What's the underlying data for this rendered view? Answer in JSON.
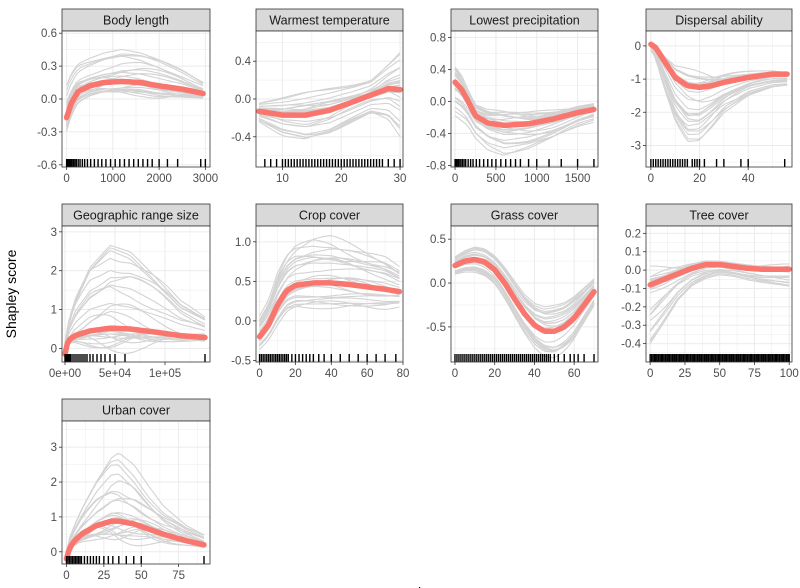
{
  "figure": {
    "ylabel": "Shapley score",
    "xlabel": "value",
    "colors": {
      "mean": "#F8766D",
      "bootstrap": "#D3D3D3",
      "strip": "#D9D9D9",
      "grid": "#EBEBEB",
      "rug": "#000000"
    }
  },
  "chart_data": [
    {
      "type": "line",
      "title": "Body length",
      "xlim": [
        -100,
        3100
      ],
      "ylim": [
        -0.62,
        0.62
      ],
      "xticks": [
        0,
        1000,
        2000,
        3000
      ],
      "xtick_labels": [
        "0",
        "1000",
        "2000",
        "3000"
      ],
      "yticks": [
        -0.6,
        -0.3,
        0.0,
        0.3,
        0.6
      ],
      "ytick_labels": [
        "-0.6",
        "-0.3",
        "0.0",
        "0.3",
        "0.6"
      ],
      "mean": {
        "x": [
          0,
          100,
          250,
          500,
          800,
          1200,
          1600,
          2000,
          2500,
          2950
        ],
        "y": [
          -0.17,
          -0.04,
          0.07,
          0.12,
          0.15,
          0.16,
          0.15,
          0.12,
          0.09,
          0.05
        ]
      },
      "band_amp": [
        0.35,
        0.32,
        0.3,
        0.3,
        0.32,
        0.35,
        0.32,
        0.28,
        0.2,
        0.12
      ],
      "band_skew": 0.5,
      "band_count": 24,
      "rug": [
        0,
        10,
        20,
        30,
        45,
        60,
        80,
        100,
        120,
        150,
        180,
        210,
        250,
        290,
        340,
        390,
        450,
        520,
        600,
        680,
        760,
        850,
        950,
        1050,
        1150,
        1250,
        1350,
        1450,
        1550,
        1650,
        1750,
        1850,
        2000,
        2180,
        2400,
        2900,
        3000
      ]
    },
    {
      "type": "line",
      "title": "Warmest temperature",
      "xlim": [
        5.5,
        30.5
      ],
      "ylim": [
        -0.72,
        0.72
      ],
      "xticks": [
        10,
        20,
        30
      ],
      "xtick_labels": [
        "10",
        "20",
        "30"
      ],
      "yticks": [
        -0.4,
        0.0,
        0.4
      ],
      "ytick_labels": [
        "-0.4",
        "0.0",
        "0.4"
      ],
      "mean": {
        "x": [
          6,
          10,
          14,
          18,
          22,
          25,
          28,
          30
        ],
        "y": [
          -0.13,
          -0.17,
          -0.17,
          -0.12,
          -0.03,
          0.04,
          0.11,
          0.1
        ]
      },
      "band_amp": [
        0.1,
        0.2,
        0.26,
        0.25,
        0.2,
        0.18,
        0.3,
        0.45
      ],
      "band_skew": 0.0,
      "band_count": 24,
      "rug": [
        7,
        8,
        9,
        10,
        10.5,
        11,
        11.5,
        12,
        12.5,
        13,
        13.5,
        14,
        14.5,
        15,
        15.5,
        16,
        16.5,
        17,
        17.5,
        18,
        18.5,
        19,
        19.5,
        20,
        20.5,
        21,
        21.5,
        22,
        22.5,
        23,
        23.5,
        24,
        24.5,
        25,
        25.5,
        26,
        26.5,
        27,
        28,
        29,
        30
      ]
    },
    {
      "type": "line",
      "title": "Lowest precipitation",
      "xlim": [
        -50,
        1750
      ],
      "ylim": [
        -0.82,
        0.88
      ],
      "xticks": [
        0,
        500,
        1000,
        1500
      ],
      "xtick_labels": [
        "0",
        "500",
        "1000",
        "1500"
      ],
      "yticks": [
        -0.8,
        -0.4,
        0.0,
        0.4,
        0.8
      ],
      "ytick_labels": [
        "-0.8",
        "-0.4",
        "0.0",
        "0.4",
        "0.8"
      ],
      "mean": {
        "x": [
          0,
          80,
          150,
          250,
          400,
          600,
          900,
          1200,
          1500,
          1700
        ],
        "y": [
          0.24,
          0.15,
          0.02,
          -0.18,
          -0.27,
          -0.3,
          -0.28,
          -0.22,
          -0.14,
          -0.1
        ]
      },
      "band_amp": [
        0.5,
        0.45,
        0.35,
        0.3,
        0.35,
        0.4,
        0.35,
        0.3,
        0.22,
        0.18
      ],
      "band_skew": -0.5,
      "band_count": 24,
      "rug": [
        0,
        10,
        20,
        35,
        50,
        70,
        90,
        110,
        130,
        160,
        190,
        220,
        260,
        300,
        350,
        400,
        450,
        500,
        560,
        620,
        680,
        740,
        800,
        900,
        1000,
        1150,
        1300,
        1500,
        1700
      ]
    },
    {
      "type": "line",
      "title": "Dispersal ability",
      "xlim": [
        -2,
        58
      ],
      "ylim": [
        -3.65,
        0.45
      ],
      "xticks": [
        0,
        20,
        40
      ],
      "xtick_labels": [
        "0",
        "20",
        "40"
      ],
      "yticks": [
        -3,
        -2,
        -1,
        0
      ],
      "ytick_labels": [
        "-3",
        "-2",
        "-1",
        "0"
      ],
      "mean": {
        "x": [
          0,
          2,
          5,
          10,
          15,
          20,
          25,
          30,
          40,
          50,
          56
        ],
        "y": [
          0.05,
          -0.05,
          -0.4,
          -0.95,
          -1.2,
          -1.25,
          -1.2,
          -1.1,
          -0.95,
          -0.85,
          -0.85
        ]
      },
      "band_amp": [
        0.2,
        0.4,
        0.9,
        1.5,
        1.9,
        1.8,
        1.4,
        1.0,
        0.6,
        0.45,
        0.4
      ],
      "band_skew": -0.7,
      "band_count": 24,
      "rug": [
        0,
        1,
        2,
        3,
        4,
        5,
        6,
        7,
        8,
        9,
        10,
        11,
        12,
        13,
        14,
        15,
        17,
        18,
        19,
        20,
        22,
        27,
        30,
        37,
        40,
        55
      ]
    },
    {
      "type": "line",
      "title": "Geographic range size",
      "xlim": [
        -3000,
        145000
      ],
      "ylim": [
        -0.35,
        3.15
      ],
      "xticks": [
        0,
        50000,
        100000
      ],
      "xtick_labels": [
        "0e+00",
        "5e+04",
        "1e+05"
      ],
      "yticks": [
        0,
        1,
        2,
        3
      ],
      "ytick_labels": [
        "0",
        "1",
        "2",
        "3"
      ],
      "mean": {
        "x": [
          0,
          3000,
          10000,
          25000,
          45000,
          65000,
          90000,
          115000,
          140000
        ],
        "y": [
          -0.15,
          0.2,
          0.33,
          0.45,
          0.52,
          0.5,
          0.42,
          0.33,
          0.28
        ]
      },
      "band_amp": [
        0.3,
        0.4,
        0.9,
        1.7,
        2.2,
        2.0,
        1.4,
        0.8,
        0.5
      ],
      "band_skew": 0.75,
      "band_count": 24,
      "rug": [
        0,
        1000,
        2000,
        3000,
        4000,
        5000,
        6000,
        8000,
        10000,
        12000,
        14000,
        16000,
        18000,
        20000,
        22000,
        25000,
        28000,
        32000,
        36000,
        40000,
        45000,
        50000,
        60000,
        140000
      ]
    },
    {
      "type": "line",
      "title": "Crop cover",
      "xlim": [
        -2,
        80
      ],
      "ylim": [
        -0.52,
        1.2
      ],
      "xticks": [
        0,
        20,
        40,
        60,
        80
      ],
      "xtick_labels": [
        "0",
        "20",
        "40",
        "60",
        "80"
      ],
      "yticks": [
        -0.5,
        0.0,
        0.5,
        1.0
      ],
      "ytick_labels": [
        "-0.5",
        "0.0",
        "0.5",
        "1.0"
      ],
      "mean": {
        "x": [
          0,
          5,
          10,
          15,
          20,
          30,
          40,
          50,
          60,
          70,
          78
        ],
        "y": [
          -0.2,
          -0.05,
          0.2,
          0.38,
          0.45,
          0.48,
          0.48,
          0.46,
          0.43,
          0.4,
          0.37
        ]
      },
      "band_amp": [
        0.25,
        0.3,
        0.4,
        0.45,
        0.5,
        0.55,
        0.55,
        0.5,
        0.45,
        0.4,
        0.3
      ],
      "band_skew": 0.3,
      "band_count": 24,
      "rug": [
        0,
        1,
        2,
        3,
        4,
        5,
        6,
        7,
        8,
        9,
        10,
        11,
        12,
        13,
        14,
        15,
        16,
        18,
        20,
        22,
        24,
        26,
        28,
        30,
        33,
        36,
        40,
        45,
        50,
        55,
        60,
        65,
        70,
        76
      ]
    },
    {
      "type": "line",
      "title": "Grass cover",
      "xlim": [
        -2,
        72
      ],
      "ylim": [
        -0.9,
        0.65
      ],
      "xticks": [
        0,
        20,
        40,
        60
      ],
      "xtick_labels": [
        "0",
        "20",
        "40",
        "60"
      ],
      "yticks": [
        -0.5,
        0.0,
        0.5
      ],
      "ytick_labels": [
        "-0.5",
        "0.0",
        "0.5"
      ],
      "mean": {
        "x": [
          0,
          5,
          10,
          15,
          20,
          25,
          30,
          35,
          40,
          45,
          50,
          55,
          60,
          65,
          70
        ],
        "y": [
          0.2,
          0.25,
          0.27,
          0.24,
          0.15,
          0.0,
          -0.18,
          -0.35,
          -0.48,
          -0.55,
          -0.55,
          -0.5,
          -0.4,
          -0.25,
          -0.1
        ]
      },
      "band_amp": [
        0.1,
        0.12,
        0.14,
        0.15,
        0.16,
        0.18,
        0.2,
        0.22,
        0.25,
        0.28,
        0.3,
        0.28,
        0.25,
        0.2,
        0.15
      ],
      "band_skew": 0.0,
      "band_count": 24,
      "rug": [
        0,
        1,
        2,
        3,
        4,
        5,
        6,
        7,
        8,
        9,
        10,
        11,
        12,
        13,
        14,
        15,
        16,
        17,
        18,
        19,
        20,
        21,
        22,
        23,
        24,
        25,
        26,
        27,
        28,
        29,
        30,
        31,
        32,
        33,
        34,
        35,
        36,
        37,
        38,
        39,
        40,
        41,
        42,
        43,
        44,
        45,
        46,
        47,
        48,
        50,
        52,
        55,
        58,
        60,
        62,
        65,
        70
      ]
    },
    {
      "type": "line",
      "title": "Tree cover",
      "xlim": [
        -3,
        102
      ],
      "ylim": [
        -0.5,
        0.24
      ],
      "xticks": [
        0,
        25,
        50,
        75,
        100
      ],
      "xtick_labels": [
        "0",
        "25",
        "50",
        "75",
        "100"
      ],
      "yticks": [
        -0.4,
        -0.3,
        -0.2,
        -0.1,
        0.0,
        0.1,
        0.2
      ],
      "ytick_labels": [
        "-0.4",
        "-0.3",
        "-0.2",
        "-0.1",
        "0.0",
        "0.1",
        "0.2"
      ],
      "mean": {
        "x": [
          0,
          10,
          20,
          30,
          40,
          50,
          60,
          70,
          80,
          90,
          100
        ],
        "y": [
          -0.08,
          -0.05,
          -0.02,
          0.01,
          0.03,
          0.03,
          0.02,
          0.01,
          0.005,
          0.005,
          0.005
        ]
      },
      "band_amp": [
        0.35,
        0.25,
        0.15,
        0.1,
        0.08,
        0.06,
        0.06,
        0.07,
        0.08,
        0.09,
        0.1
      ],
      "band_skew": -0.6,
      "band_count": 24,
      "rug": [
        0,
        1,
        2,
        3,
        4,
        5,
        6,
        7,
        8,
        9,
        10,
        11,
        12,
        13,
        14,
        15,
        16,
        17,
        18,
        19,
        20,
        21,
        22,
        23,
        24,
        25,
        26,
        27,
        28,
        29,
        30,
        31,
        32,
        33,
        34,
        35,
        36,
        37,
        38,
        39,
        40,
        41,
        42,
        43,
        44,
        45,
        46,
        47,
        48,
        49,
        50,
        51,
        52,
        53,
        54,
        55,
        56,
        57,
        58,
        59,
        60,
        61,
        62,
        63,
        64,
        65,
        66,
        67,
        68,
        69,
        70,
        71,
        72,
        73,
        74,
        75,
        76,
        77,
        78,
        79,
        80,
        81,
        82,
        83,
        84,
        85,
        86,
        87,
        88,
        89,
        90,
        91,
        92,
        93,
        94,
        95,
        96,
        97,
        98,
        99,
        100
      ]
    },
    {
      "type": "line",
      "title": "Urban cover",
      "xlim": [
        -3,
        96
      ],
      "ylim": [
        -0.35,
        3.75
      ],
      "xticks": [
        0,
        25,
        50,
        75
      ],
      "xtick_labels": [
        "0",
        "25",
        "50",
        "75"
      ],
      "yticks": [
        0,
        1,
        2,
        3
      ],
      "ytick_labels": [
        "0",
        "1",
        "2",
        "3"
      ],
      "mean": {
        "x": [
          0,
          2,
          5,
          10,
          20,
          30,
          35,
          45,
          55,
          65,
          80,
          92
        ],
        "y": [
          -0.2,
          0.1,
          0.3,
          0.5,
          0.75,
          0.88,
          0.88,
          0.8,
          0.65,
          0.5,
          0.32,
          0.2
        ]
      },
      "band_amp": [
        0.3,
        0.4,
        0.6,
        1.0,
        1.8,
        2.6,
        2.8,
        2.4,
        1.7,
        1.1,
        0.6,
        0.4
      ],
      "band_skew": 0.75,
      "band_count": 24,
      "rug": [
        0,
        1,
        2,
        3,
        4,
        5,
        6,
        7,
        8,
        9,
        10,
        12,
        14,
        16,
        18,
        20,
        22,
        25,
        28,
        31,
        35,
        40,
        45,
        50,
        92
      ]
    }
  ]
}
